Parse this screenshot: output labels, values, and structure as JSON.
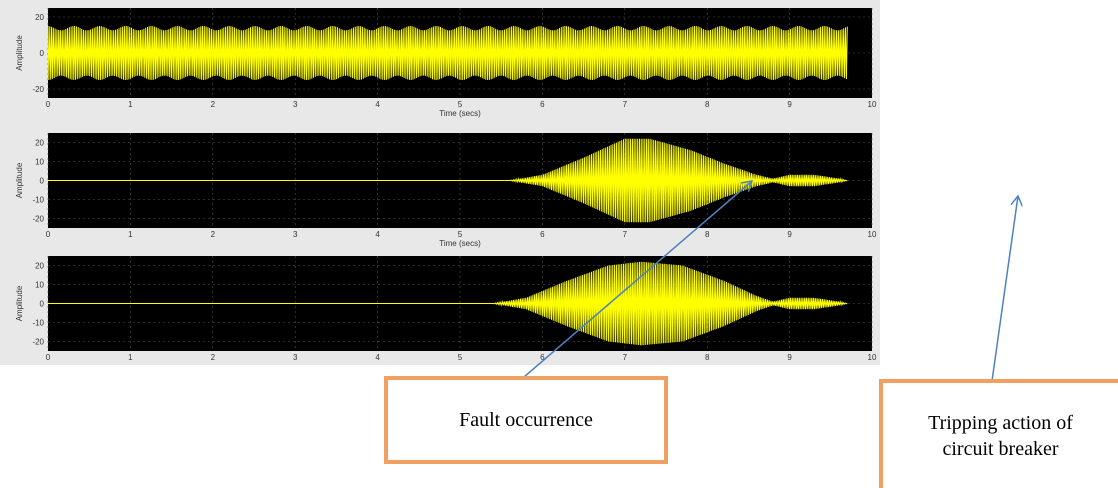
{
  "chart_data": [
    {
      "type": "line",
      "ylabel": "Amplitude",
      "xlabel": "Time (secs)",
      "xlim": [
        0,
        10
      ],
      "ylim": [
        -25,
        25
      ],
      "xticks": [
        "0",
        "1",
        "2",
        "3",
        "4",
        "5",
        "6",
        "7",
        "8",
        "9",
        "10"
      ],
      "yticks": [
        "20",
        "0",
        "-20"
      ],
      "series": [
        {
          "color": "#ffff00",
          "x": [
            0,
            9.7
          ],
          "amplitude": [
            15,
            15
          ],
          "signal": "constant-oscillation"
        }
      ]
    },
    {
      "type": "line",
      "ylabel": "Amplitude",
      "xlabel": "Time (secs)",
      "xlim": [
        0,
        10
      ],
      "ylim": [
        -25,
        25
      ],
      "xticks": [
        "0",
        "1",
        "2",
        "3",
        "4",
        "5",
        "6",
        "7",
        "8",
        "9",
        "10"
      ],
      "yticks": [
        "20",
        "10",
        "0",
        "-10",
        "-20"
      ],
      "series": [
        {
          "color": "#ffff00",
          "envelope_x": [
            0,
            5.6,
            6.0,
            6.5,
            7.0,
            7.3,
            7.8,
            8.2,
            8.6,
            8.8,
            9.0,
            9.3,
            9.6,
            9.7
          ],
          "envelope_y": [
            0,
            0,
            3,
            12,
            22,
            22,
            16,
            9,
            3,
            1,
            3,
            3,
            1,
            0
          ]
        }
      ]
    },
    {
      "type": "line",
      "ylabel": "Amplitude",
      "xlabel": "",
      "xlim": [
        0,
        10
      ],
      "ylim": [
        -25,
        25
      ],
      "xticks": [
        "0",
        "1",
        "2",
        "3",
        "4",
        "5",
        "6",
        "7",
        "8",
        "9",
        "10"
      ],
      "yticks": [
        "20",
        "10",
        "0",
        "-10",
        "-20"
      ],
      "series": [
        {
          "color": "#ffff00",
          "envelope_x": [
            0,
            5.4,
            5.8,
            6.3,
            6.8,
            7.2,
            7.7,
            8.2,
            8.6,
            8.8,
            9.0,
            9.3,
            9.6,
            9.7
          ],
          "envelope_y": [
            0,
            0,
            3,
            12,
            20,
            22,
            20,
            12,
            4,
            1,
            3,
            3,
            1,
            0
          ]
        }
      ]
    }
  ],
  "callouts": {
    "fault": "Fault occurrence",
    "trip_line1": "Tripping action of",
    "trip_line2": "circuit breaker"
  },
  "colors": {
    "plot_bg": "#000000",
    "signal": "#ffff00",
    "arrow": "#4f81bd",
    "callout_border": "#f0a060"
  }
}
